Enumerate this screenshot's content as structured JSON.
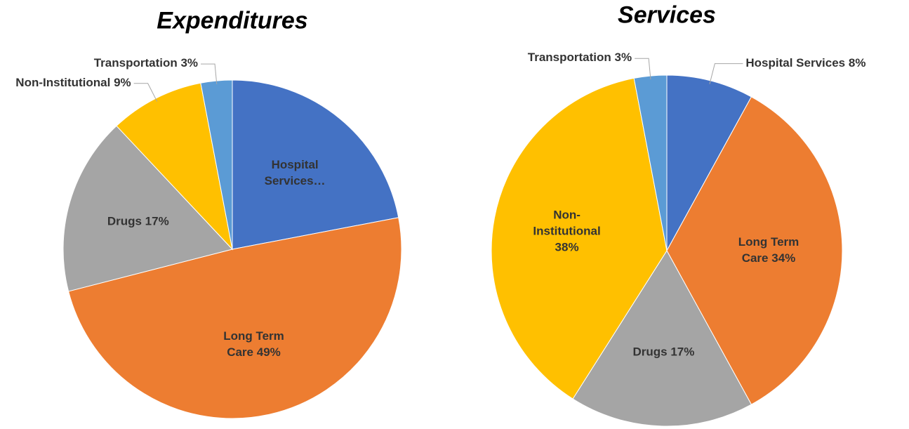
{
  "chart_data": [
    {
      "type": "pie",
      "title": "Expenditures",
      "categories": [
        "Hospital Services…",
        "Long Term Care",
        "Drugs",
        "Non-Institutional",
        "Transportation"
      ],
      "values": [
        22,
        49,
        17,
        9,
        3
      ],
      "value_labels": [
        null,
        "49%",
        "17%",
        "9%",
        "3%"
      ],
      "colors": [
        "#4472c4",
        "#ed7d31",
        "#a5a5a5",
        "#ffc000",
        "#5b9bd5"
      ]
    },
    {
      "type": "pie",
      "title": "Services",
      "categories": [
        "Hospital Services",
        "Long Term Care",
        "Drugs",
        "Non-Institutional",
        "Transportation"
      ],
      "values": [
        8,
        34,
        17,
        38,
        3
      ],
      "value_labels": [
        "8%",
        "34%",
        "17%",
        "38%",
        "3%"
      ],
      "colors": [
        "#4472c4",
        "#ed7d31",
        "#a5a5a5",
        "#ffc000",
        "#5b9bd5"
      ]
    }
  ]
}
